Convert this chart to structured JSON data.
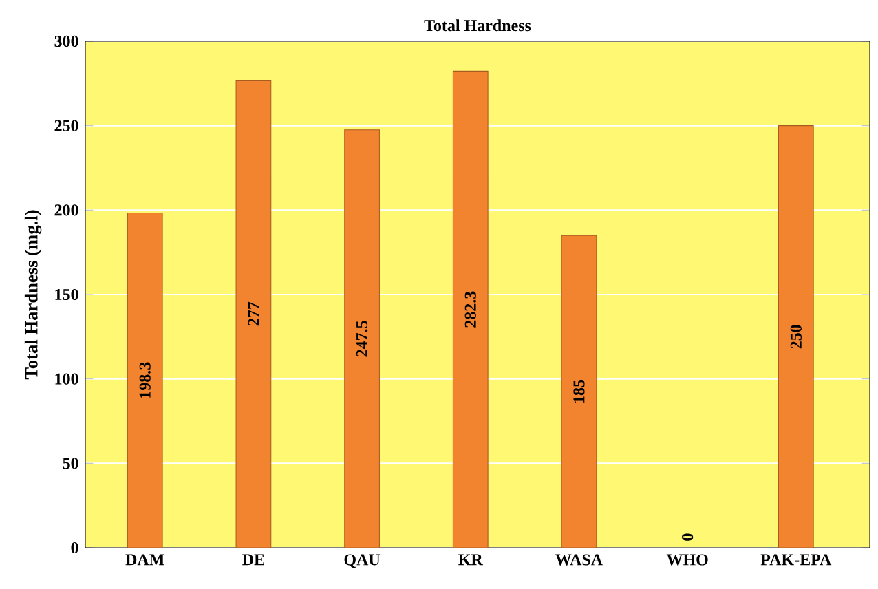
{
  "chart_data": {
    "type": "bar",
    "title": "Total Hardness",
    "ylabel": "Total Hardness (mg.l)",
    "categories": [
      "DAM",
      "DE",
      "QAU",
      "KR",
      "WASA",
      "WHO",
      "PAK-EPA"
    ],
    "values": [
      198.3,
      277,
      247.5,
      282.3,
      185,
      0,
      250
    ],
    "color": "#f28430",
    "ylim": [
      0,
      300
    ],
    "yticks": [
      0,
      50,
      100,
      150,
      200,
      250,
      300
    ],
    "grid": "y",
    "data_labels": true
  }
}
